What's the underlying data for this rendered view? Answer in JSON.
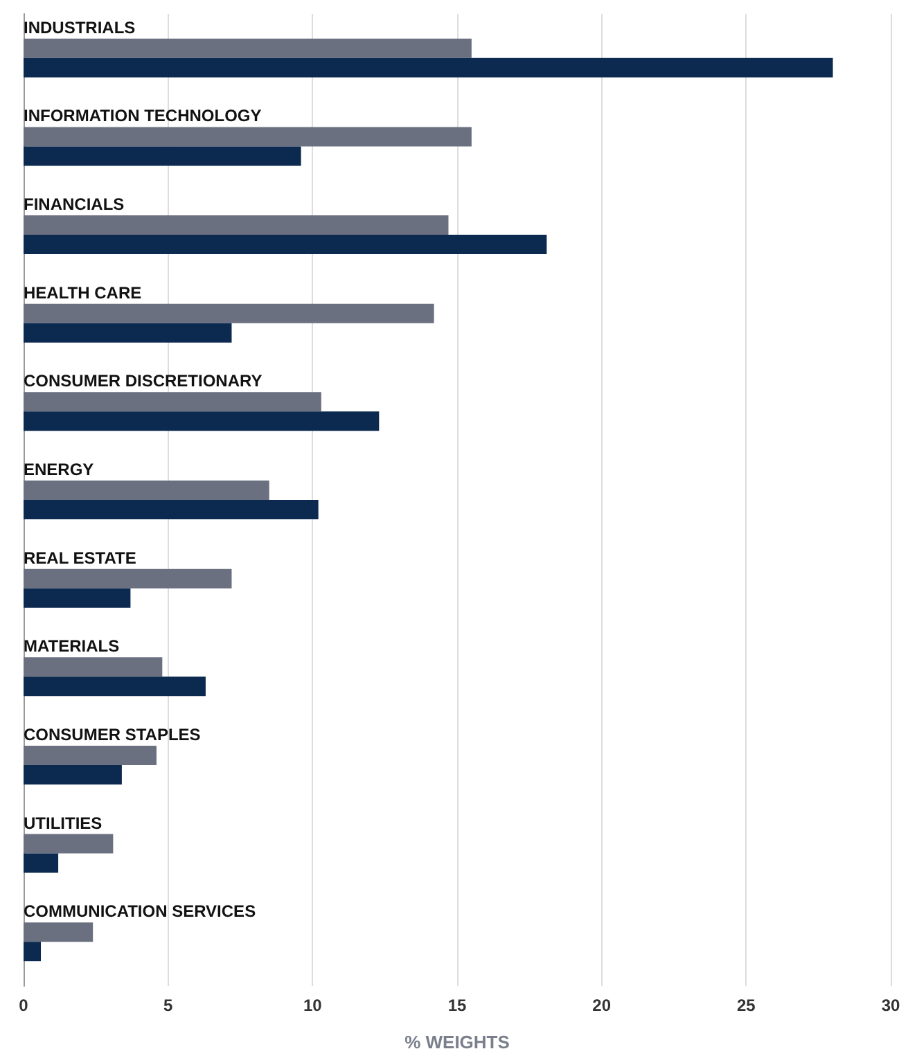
{
  "chart_data": {
    "type": "bar",
    "orientation": "horizontal",
    "xlabel": "% WEIGHTS",
    "categories": [
      "INDUSTRIALS",
      "INFORMATION TECHNOLOGY",
      "FINANCIALS",
      "HEALTH CARE",
      "CONSUMER DISCRETIONARY",
      "ENERGY",
      "REAL ESTATE",
      "MATERIALS",
      "CONSUMER STAPLES",
      "UTILITIES",
      "COMMUNICATION SERVICES"
    ],
    "series": [
      {
        "color": "#6b7080",
        "values": [
          15.5,
          15.5,
          14.7,
          14.2,
          10.3,
          8.5,
          7.2,
          4.8,
          4.6,
          3.1,
          2.4
        ]
      },
      {
        "color": "#0c2a4f",
        "values": [
          28.0,
          9.6,
          18.1,
          7.2,
          12.3,
          10.2,
          3.7,
          6.3,
          3.4,
          1.2,
          0.6
        ]
      }
    ],
    "xlim": [
      0,
      30
    ],
    "xticks": [
      0,
      5,
      10,
      15,
      20,
      25,
      30
    ],
    "grid": "x"
  }
}
